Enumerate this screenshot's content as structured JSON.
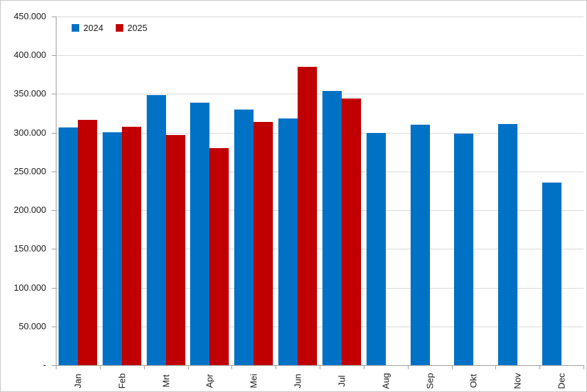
{
  "chart_data": {
    "type": "bar",
    "title": "",
    "xlabel": "",
    "ylabel": "",
    "categories": [
      "Jan",
      "Feb",
      "Mrt",
      "Apr",
      "Mei",
      "Jun",
      "Jul",
      "Aug",
      "Sep",
      "Okt",
      "Nov",
      "Dec"
    ],
    "series": [
      {
        "name": "2024",
        "color": "#0072C6",
        "values": [
          307000,
          301000,
          349000,
          339000,
          330000,
          318000,
          354000,
          300000,
          310000,
          299000,
          311000,
          236000
        ]
      },
      {
        "name": "2025",
        "color": "#C00000",
        "values": [
          317000,
          308000,
          297000,
          280000,
          314000,
          385000,
          344000,
          null,
          null,
          null,
          null,
          null
        ]
      }
    ],
    "ylim": [
      0,
      450000
    ],
    "y_tick_step": 50000,
    "y_tick_labels": [
      "-",
      "50.000",
      "100.000",
      "150.000",
      "200.000",
      "250.000",
      "300.000",
      "350.000",
      "400.000",
      "450.000"
    ],
    "grid": true,
    "legend_position": "top-left"
  },
  "colors": {
    "grid": "#D9D9D9",
    "axis": "#9E9E9E",
    "text": "#1A1A1A",
    "background": "#FFFFFF",
    "border": "#C9C9C9"
  }
}
